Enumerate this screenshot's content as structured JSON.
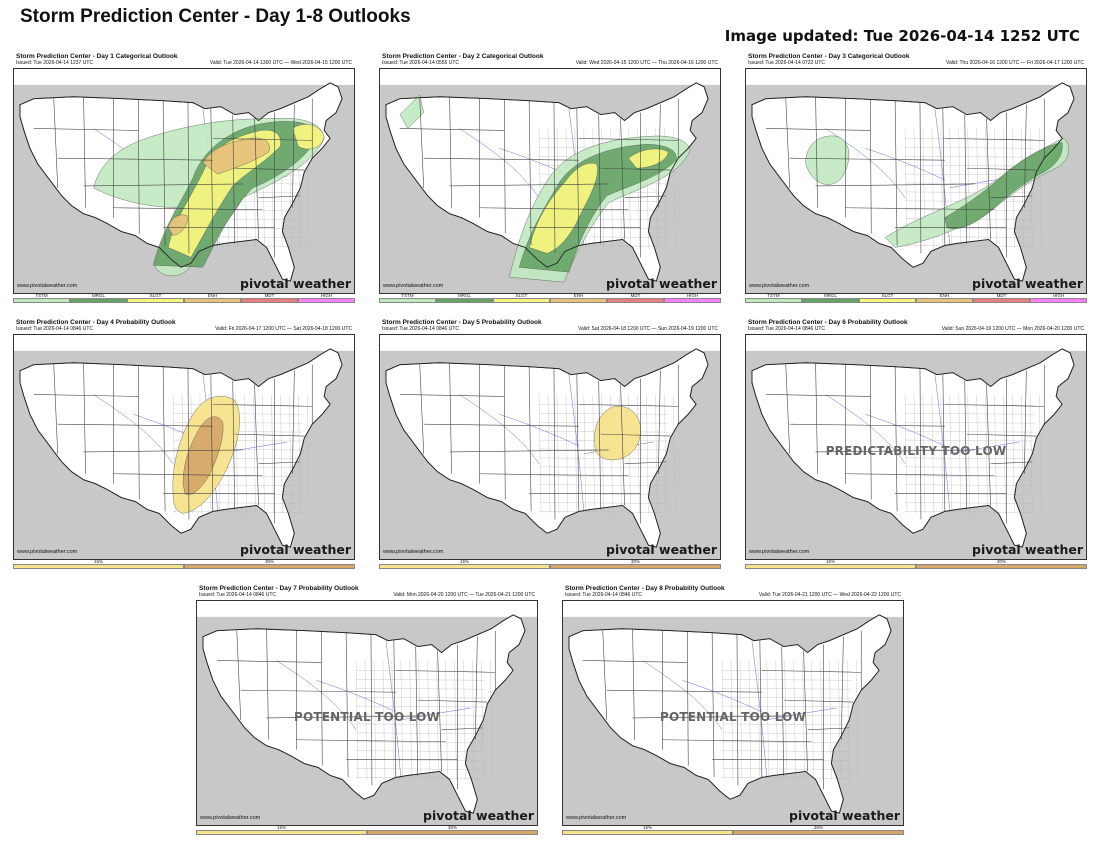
{
  "page": {
    "title": "Storm Prediction Center - Day 1-8 Outlooks",
    "updated": "Image updated: Tue 2026-04-14 1252 UTC"
  },
  "colors": {
    "tstm": "#c1e9c1",
    "mrgl": "#66a366",
    "slgt": "#f6f67f",
    "enh": "#e6c27a",
    "mdt": "#e67f7f",
    "high": "#ff7fff",
    "prob15": "#f6e38c",
    "prob30": "#d4a86a",
    "land_outside": "#c8c8c8",
    "state_line": "#444444",
    "county_line": "#b5b5b5",
    "river": "#6b6bdc"
  },
  "panels": [
    {
      "title": "Storm Prediction Center - Day 1 Categorical Outlook",
      "issued": "Issued: Tue 2026-04-14 1237 UTC",
      "valid": "Valid: Tue 2026-04-14 1300 UTC — Wed 2026-04-15 1200 UTC",
      "site": "www.pivotalweather.com",
      "brand": "pivotal weather",
      "overlay": "",
      "legend": [
        "TSTM",
        "MRGL",
        "SLGT",
        "ENH",
        "MDT",
        "HIGH"
      ]
    },
    {
      "title": "Storm Prediction Center - Day 2 Categorical Outlook",
      "issued": "Issued: Tue 2026-04-14 0555 UTC",
      "valid": "Valid: Wed 2026-04-15 1200 UTC — Thu 2026-04-16 1200 UTC",
      "site": "www.pivotalweather.com",
      "brand": "pivotal weather",
      "overlay": "",
      "legend": [
        "TSTM",
        "MRGL",
        "SLGT",
        "ENH",
        "MDT",
        "HIGH"
      ]
    },
    {
      "title": "Storm Prediction Center - Day 3 Categorical Outlook",
      "issued": "Issued: Tue 2026-04-14 0722 UTC",
      "valid": "Valid: Thu 2026-04-16 1200 UTC — Fri 2026-04-17 1200 UTC",
      "site": "www.pivotalweather.com",
      "brand": "pivotal weather",
      "overlay": "",
      "legend": [
        "TSTM",
        "MRGL",
        "SLGT",
        "ENH",
        "MDT",
        "HIGH"
      ]
    },
    {
      "title": "Storm Prediction Center - Day 4 Probability Outlook",
      "issued": "Issued: Tue 2026-04-14 0846 UTC",
      "valid": "Valid: Fri 2026-04-17 1200 UTC — Sat 2026-04-18 1200 UTC",
      "site": "www.pivotalweather.com",
      "brand": "pivotal weather",
      "overlay": "",
      "legend": [
        "15%",
        "30%"
      ]
    },
    {
      "title": "Storm Prediction Center - Day 5 Probability Outlook",
      "issued": "Issued: Tue 2026-04-14 0846 UTC",
      "valid": "Valid: Sat 2026-04-18 1200 UTC — Sun 2026-04-19 1200 UTC",
      "site": "www.pivotalweather.com",
      "brand": "pivotal weather",
      "overlay": "",
      "legend": [
        "15%",
        "30%"
      ]
    },
    {
      "title": "Storm Prediction Center - Day 6 Probability Outlook",
      "issued": "Issued: Tue 2026-04-14 0846 UTC",
      "valid": "Valid: Sun 2026-04-19 1200 UTC — Mon 2026-04-20 1200 UTC",
      "site": "www.pivotalweather.com",
      "brand": "pivotal weather",
      "overlay": "PREDICTABILITY TOO LOW",
      "legend": [
        "15%",
        "30%"
      ]
    },
    {
      "title": "Storm Prediction Center - Day 7 Probability Outlook",
      "issued": "Issued: Tue 2026-04-14 0846 UTC",
      "valid": "Valid: Mon 2026-04-20 1200 UTC — Tue 2026-04-21 1200 UTC",
      "site": "www.pivotalweather.com",
      "brand": "pivotal weather",
      "overlay": "POTENTIAL TOO LOW",
      "legend": [
        "15%",
        "30%"
      ]
    },
    {
      "title": "Storm Prediction Center - Day 8 Probability Outlook",
      "issued": "Issued: Tue 2026-04-14 0846 UTC",
      "valid": "Valid: Tue 2026-04-21 1200 UTC — Wed 2026-04-22 1200 UTC",
      "site": "www.pivotalweather.com",
      "brand": "pivotal weather",
      "overlay": "POTENTIAL TOO LOW",
      "legend": [
        "15%",
        "30%"
      ]
    }
  ]
}
